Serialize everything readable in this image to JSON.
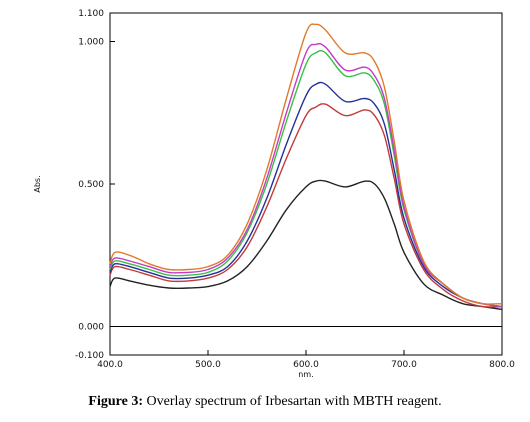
{
  "caption": {
    "label": "Figure 3:",
    "text": " Overlay spectrum of Irbesartan with MBTH reagent."
  },
  "chart_data": {
    "type": "line",
    "xlabel": "nm.",
    "ylabel": "Abs.",
    "xlim": [
      400.0,
      800.0
    ],
    "ylim": [
      -0.1,
      1.1
    ],
    "x_ticks": [
      "400.0",
      "500.0",
      "600.0",
      "700.0",
      "800.0"
    ],
    "x_tick_values": [
      400,
      500,
      600,
      700,
      800
    ],
    "y_ticks": [
      "1.100",
      "1.000",
      "0.500",
      "0.000",
      "-0.100"
    ],
    "y_tick_values": [
      1.1,
      1.0,
      0.5,
      0.0,
      -0.1
    ],
    "baseline": 0.0,
    "grid": false,
    "x": [
      400,
      405,
      420,
      440,
      460,
      480,
      500,
      520,
      540,
      560,
      580,
      600,
      610,
      620,
      640,
      660,
      670,
      680,
      690,
      700,
      720,
      740,
      760,
      780,
      800
    ],
    "series": [
      {
        "color": "#222222",
        "values": [
          0.14,
          0.17,
          0.16,
          0.145,
          0.135,
          0.135,
          0.14,
          0.16,
          0.21,
          0.3,
          0.41,
          0.49,
          0.51,
          0.51,
          0.49,
          0.51,
          0.5,
          0.45,
          0.36,
          0.26,
          0.15,
          0.11,
          0.08,
          0.07,
          0.06
        ]
      },
      {
        "color": "#c23a3a",
        "values": [
          0.18,
          0.21,
          0.2,
          0.18,
          0.16,
          0.16,
          0.17,
          0.2,
          0.28,
          0.42,
          0.59,
          0.74,
          0.77,
          0.78,
          0.74,
          0.76,
          0.74,
          0.67,
          0.52,
          0.36,
          0.2,
          0.13,
          0.09,
          0.07,
          0.07
        ]
      },
      {
        "color": "#24309a",
        "values": [
          0.19,
          0.22,
          0.21,
          0.19,
          0.17,
          0.17,
          0.18,
          0.21,
          0.3,
          0.45,
          0.64,
          0.81,
          0.85,
          0.85,
          0.79,
          0.8,
          0.78,
          0.71,
          0.55,
          0.38,
          0.21,
          0.14,
          0.1,
          0.08,
          0.07
        ]
      },
      {
        "color": "#35c248",
        "values": [
          0.2,
          0.23,
          0.22,
          0.2,
          0.18,
          0.18,
          0.19,
          0.23,
          0.33,
          0.5,
          0.72,
          0.92,
          0.96,
          0.96,
          0.88,
          0.89,
          0.86,
          0.78,
          0.6,
          0.41,
          0.22,
          0.15,
          0.1,
          0.08,
          0.07
        ]
      },
      {
        "color": "#c43cc4",
        "values": [
          0.21,
          0.24,
          0.23,
          0.21,
          0.19,
          0.19,
          0.2,
          0.24,
          0.34,
          0.52,
          0.75,
          0.96,
          0.99,
          0.98,
          0.9,
          0.91,
          0.88,
          0.8,
          0.62,
          0.42,
          0.22,
          0.15,
          0.1,
          0.08,
          0.07
        ]
      },
      {
        "color": "#e07a2a",
        "values": [
          0.22,
          0.26,
          0.25,
          0.22,
          0.2,
          0.2,
          0.21,
          0.25,
          0.36,
          0.55,
          0.8,
          1.03,
          1.06,
          1.04,
          0.96,
          0.96,
          0.93,
          0.84,
          0.65,
          0.44,
          0.23,
          0.15,
          0.1,
          0.08,
          0.08
        ]
      }
    ]
  }
}
